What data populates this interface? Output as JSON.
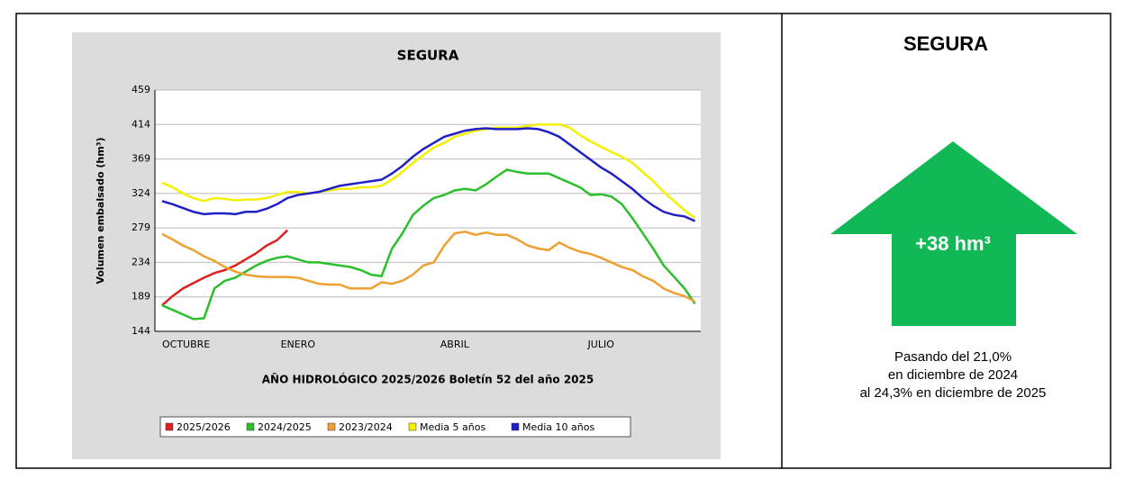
{
  "chart_data": {
    "type": "line",
    "title": "SEGURA",
    "y_label": "Volumen embalsado (hm³)",
    "x_label": "AÑO HIDROLÓGICO 2025/2026 Boletín 52 del año 2025",
    "categories": [
      "OCTUBRE",
      null,
      null,
      null,
      null,
      null,
      null,
      null,
      null,
      null,
      null,
      null,
      null,
      "ENERO",
      null,
      null,
      null,
      null,
      null,
      null,
      null,
      null,
      null,
      null,
      null,
      null,
      null,
      null,
      "ABRIL",
      null,
      null,
      null,
      null,
      null,
      null,
      null,
      null,
      null,
      null,
      null,
      null,
      null,
      "JULIO",
      null,
      null,
      null,
      null,
      null,
      null,
      null,
      null,
      null
    ],
    "ylim": [
      144,
      459
    ],
    "yticks": [
      144,
      189,
      234,
      279,
      324,
      369,
      414,
      459
    ],
    "grid": true,
    "series": [
      {
        "name": "2025/2026",
        "color": "#e02020",
        "values": [
          178,
          190,
          200,
          207,
          214,
          220,
          224,
          230,
          238,
          246,
          256,
          263,
          276,
          null,
          null,
          null,
          null,
          null,
          null,
          null,
          null,
          null,
          null,
          null,
          null,
          null,
          null,
          null,
          null,
          null,
          null,
          null,
          null,
          null,
          null,
          null,
          null,
          null,
          null,
          null,
          null,
          null,
          null,
          null,
          null,
          null,
          null,
          null,
          null,
          null,
          null,
          null
        ]
      },
      {
        "name": "2024/2025",
        "color": "#2cbf2c",
        "values": [
          178,
          172,
          166,
          160,
          161,
          200,
          210,
          214,
          222,
          230,
          236,
          240,
          242,
          238,
          234,
          234,
          232,
          230,
          228,
          224,
          218,
          216,
          252,
          272,
          296,
          308,
          318,
          322,
          328,
          330,
          328,
          336,
          346,
          355,
          352,
          350,
          350,
          350,
          344,
          338,
          332,
          322,
          323,
          320,
          310,
          292,
          272,
          252,
          230,
          215,
          200,
          180
        ]
      },
      {
        "name": "2023/2024",
        "color": "#f0a030",
        "values": [
          271,
          264,
          256,
          250,
          242,
          236,
          228,
          222,
          218,
          216,
          215,
          215,
          215,
          214,
          210,
          206,
          205,
          205,
          200,
          200,
          200,
          208,
          206,
          210,
          218,
          230,
          234,
          256,
          272,
          274,
          270,
          273,
          270,
          270,
          264,
          256,
          252,
          250,
          260,
          253,
          248,
          245,
          240,
          234,
          228,
          224,
          216,
          210,
          200,
          194,
          190,
          183
        ]
      },
      {
        "name": "Media 5 años",
        "color": "#f5f000",
        "values": [
          338,
          332,
          324,
          318,
          314,
          318,
          317,
          315,
          316,
          316,
          318,
          322,
          326,
          326,
          324,
          326,
          328,
          330,
          330,
          332,
          332,
          334,
          342,
          352,
          364,
          374,
          384,
          390,
          398,
          402,
          406,
          408,
          410,
          410,
          410,
          412,
          414,
          414,
          414,
          410,
          400,
          392,
          385,
          378,
          372,
          364,
          352,
          340,
          326,
          314,
          302,
          292
        ]
      },
      {
        "name": "Media 10 años",
        "color": "#2020c8",
        "values": [
          314,
          310,
          305,
          300,
          297,
          298,
          298,
          297,
          300,
          300,
          304,
          310,
          318,
          322,
          324,
          326,
          330,
          334,
          336,
          338,
          340,
          342,
          350,
          360,
          372,
          382,
          390,
          398,
          402,
          406,
          408,
          409,
          408,
          408,
          408,
          409,
          408,
          404,
          398,
          388,
          378,
          368,
          358,
          350,
          340,
          330,
          318,
          308,
          300,
          296,
          294,
          288
        ]
      }
    ]
  },
  "panel": {
    "title": "SEGURA",
    "change": "+38 hm³",
    "color": "#12b856",
    "caption": [
      "Pasando del 21,0%",
      "en diciembre de 2024",
      "al 24,3% en diciembre de 2025"
    ]
  }
}
